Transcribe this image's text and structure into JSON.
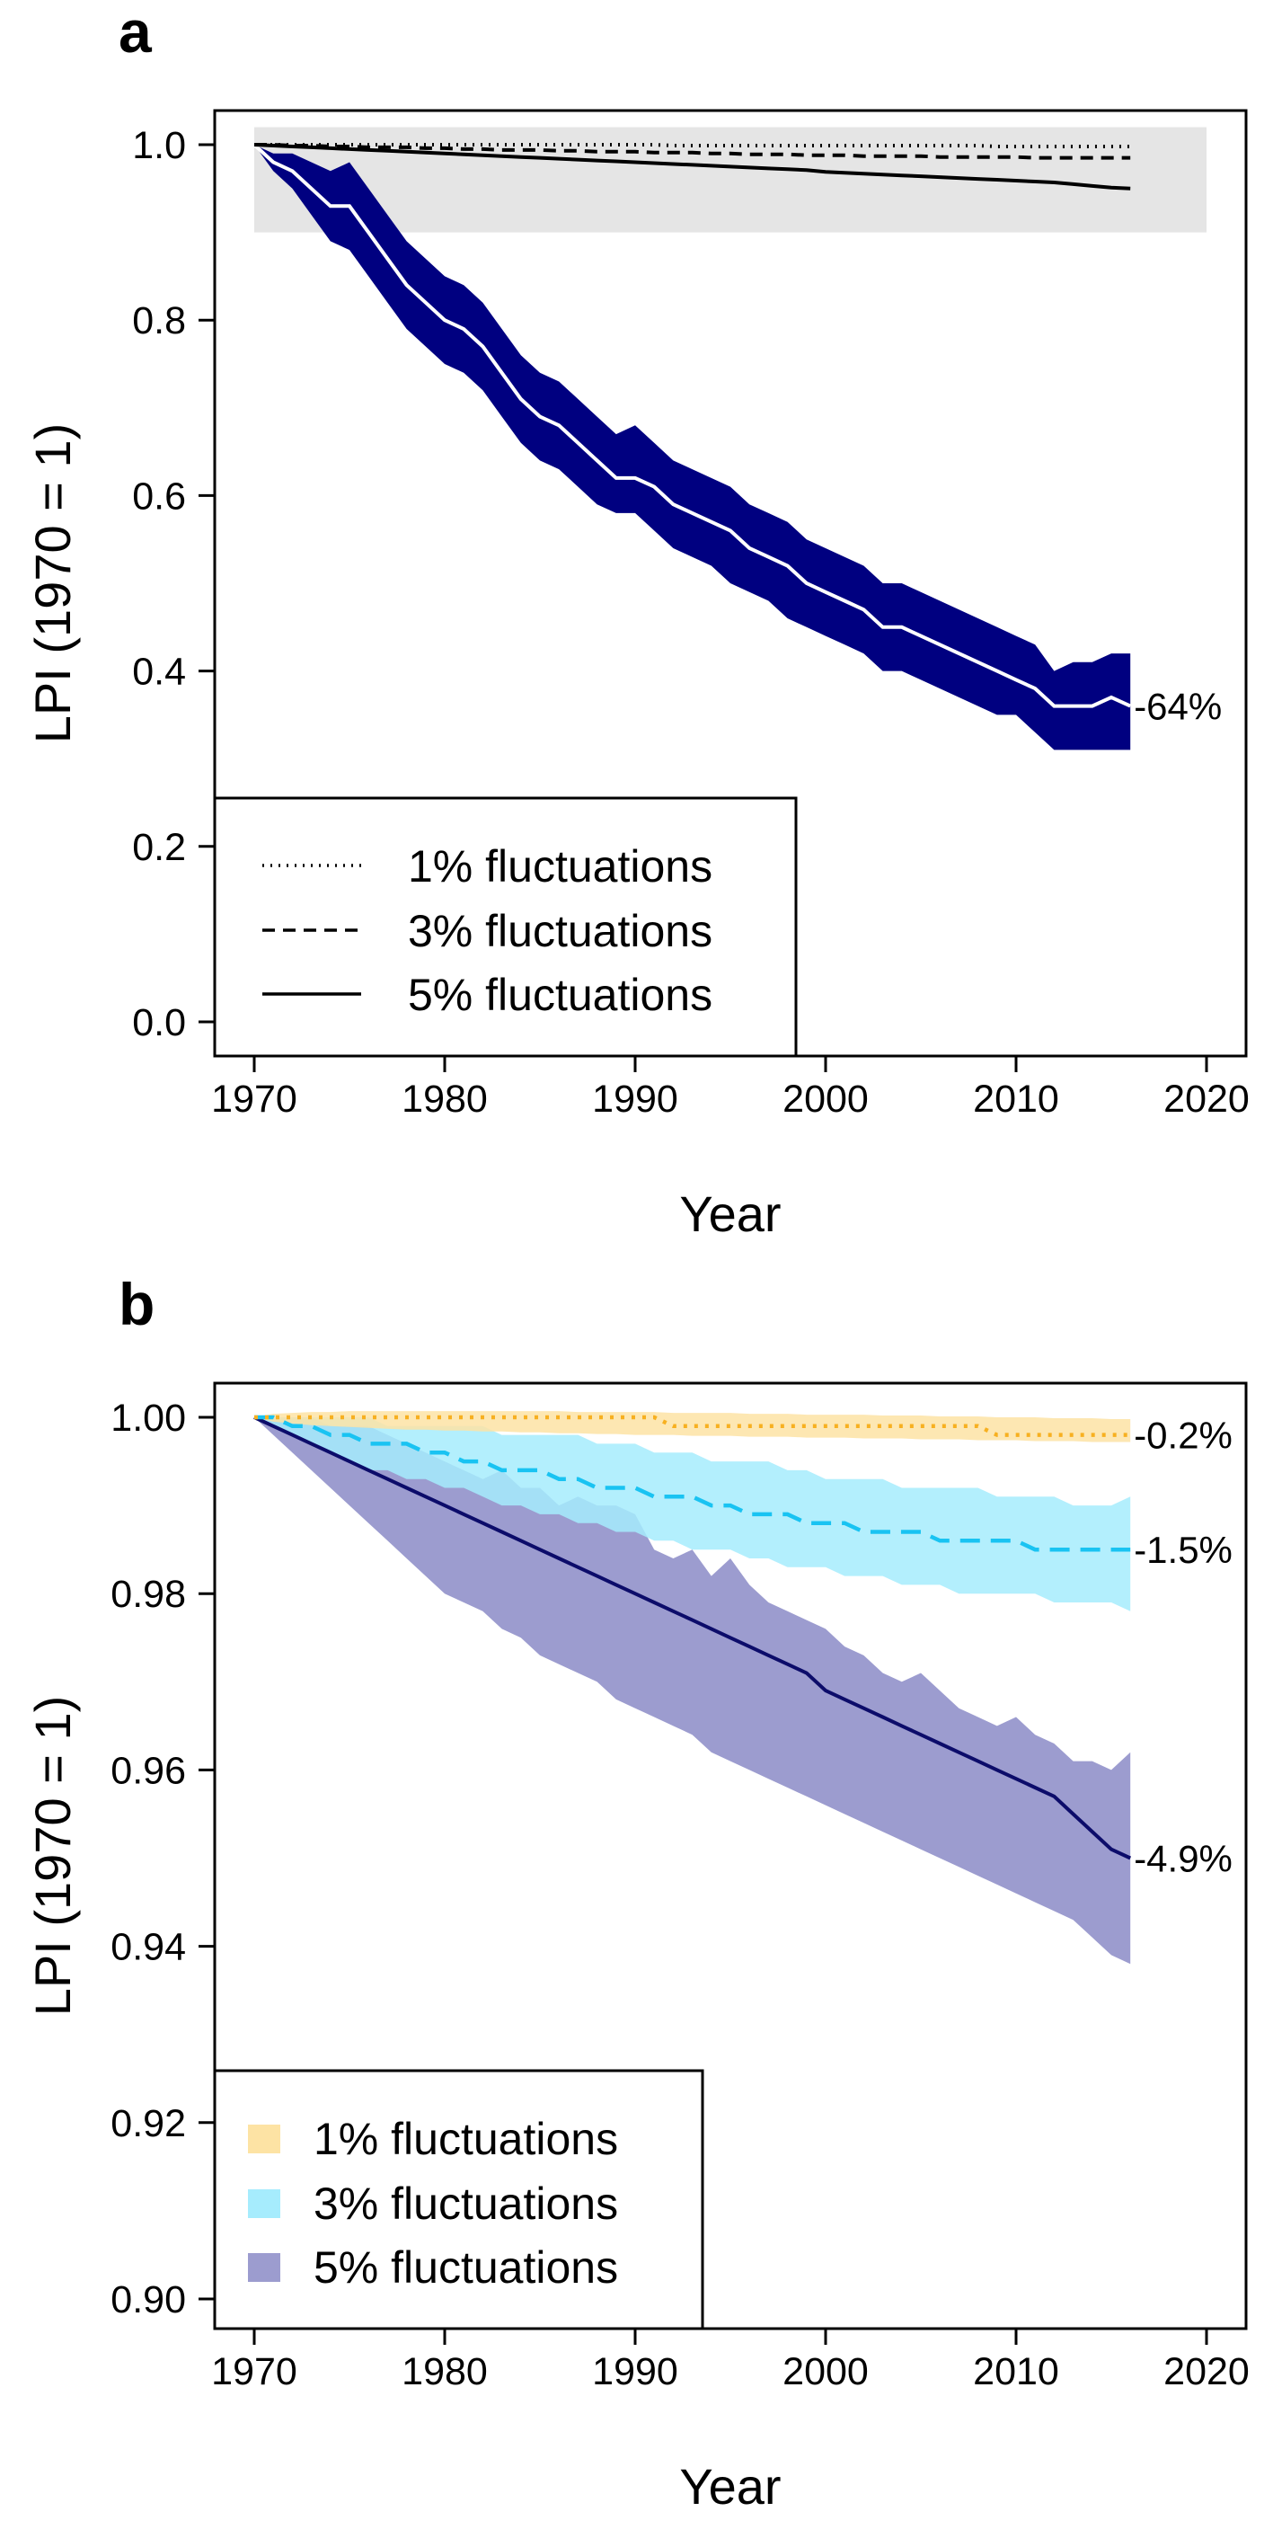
{
  "colors": {
    "dark_blue": "#000080",
    "null_band_grey": "#e5e5e5",
    "white_line": "#ffffff",
    "orange_band": "#fde3a4",
    "orange_line": "#f7b020",
    "cyan_band": "#a6ecfd",
    "cyan_line": "#19c3f2",
    "purple_band": "#9c9ccf",
    "navy_line": "#0c0c6a"
  },
  "chart_data": [
    {
      "type": "line",
      "panel_label": "a",
      "xlabel": "Year",
      "ylabel": "LPI (1970 = 1)",
      "xlim": [
        1970,
        2020
      ],
      "ylim": [
        0.0,
        1.0
      ],
      "xticks": [
        "1970",
        "1980",
        "1990",
        "2000",
        "2010",
        "2020"
      ],
      "yticks": [
        "0.0",
        "0.2",
        "0.4",
        "0.6",
        "0.8",
        "1.0"
      ],
      "grid": false,
      "legend_position": "bottom-left",
      "legend": [
        {
          "label": "1% fluctuations",
          "style": "dotted"
        },
        {
          "label": "3% fluctuations",
          "style": "dashed"
        },
        {
          "label": "5% fluctuations",
          "style": "solid"
        }
      ],
      "null_band": {
        "x": [
          1970,
          2020
        ],
        "y": [
          0.9,
          1.02
        ]
      },
      "x": [
        1970,
        1971,
        1972,
        1973,
        1974,
        1975,
        1976,
        1977,
        1978,
        1979,
        1980,
        1981,
        1982,
        1983,
        1984,
        1985,
        1986,
        1987,
        1988,
        1989,
        1990,
        1991,
        1992,
        1993,
        1994,
        1995,
        1996,
        1997,
        1998,
        1999,
        2000,
        2001,
        2002,
        2003,
        2004,
        2005,
        2006,
        2007,
        2008,
        2009,
        2010,
        2011,
        2012,
        2013,
        2014,
        2015,
        2016
      ],
      "series": [
        {
          "role": "main trend",
          "values": [
            1.0,
            0.98,
            0.97,
            0.95,
            0.93,
            0.93,
            0.9,
            0.87,
            0.84,
            0.82,
            0.8,
            0.79,
            0.77,
            0.74,
            0.71,
            0.69,
            0.68,
            0.66,
            0.64,
            0.62,
            0.62,
            0.61,
            0.59,
            0.58,
            0.57,
            0.56,
            0.54,
            0.53,
            0.52,
            0.5,
            0.49,
            0.48,
            0.47,
            0.45,
            0.45,
            0.44,
            0.43,
            0.42,
            0.41,
            0.4,
            0.39,
            0.38,
            0.36,
            0.36,
            0.36,
            0.37,
            0.36
          ],
          "lower": [
            1.0,
            0.97,
            0.95,
            0.92,
            0.89,
            0.88,
            0.85,
            0.82,
            0.79,
            0.77,
            0.75,
            0.74,
            0.72,
            0.69,
            0.66,
            0.64,
            0.63,
            0.61,
            0.59,
            0.58,
            0.58,
            0.56,
            0.54,
            0.53,
            0.52,
            0.5,
            0.49,
            0.48,
            0.46,
            0.45,
            0.44,
            0.43,
            0.42,
            0.4,
            0.4,
            0.39,
            0.38,
            0.37,
            0.36,
            0.35,
            0.35,
            0.33,
            0.31,
            0.31,
            0.31,
            0.31,
            0.31
          ],
          "upper": [
            1.0,
            0.99,
            0.99,
            0.98,
            0.97,
            0.98,
            0.95,
            0.92,
            0.89,
            0.87,
            0.85,
            0.84,
            0.82,
            0.79,
            0.76,
            0.74,
            0.73,
            0.71,
            0.69,
            0.67,
            0.68,
            0.66,
            0.64,
            0.63,
            0.62,
            0.61,
            0.59,
            0.58,
            0.57,
            0.55,
            0.54,
            0.53,
            0.52,
            0.5,
            0.5,
            0.49,
            0.48,
            0.47,
            0.46,
            0.45,
            0.44,
            0.43,
            0.4,
            0.41,
            0.41,
            0.42,
            0.42
          ],
          "end_label": "-64%"
        },
        {
          "name": "1% fluctuations",
          "style": "dotted",
          "values": [
            1.0,
            1.0,
            1.0,
            1.0,
            1.0,
            1.0,
            1.0,
            1.0,
            1.0,
            1.0,
            1.0,
            1.0,
            1.0,
            1.0,
            1.0,
            1.0,
            1.0,
            1.0,
            1.0,
            1.0,
            1.0,
            1.0,
            0.999,
            0.999,
            0.999,
            0.999,
            0.999,
            0.999,
            0.999,
            0.999,
            0.999,
            0.999,
            0.999,
            0.999,
            0.999,
            0.999,
            0.999,
            0.999,
            0.999,
            0.998,
            0.998,
            0.998,
            0.998,
            0.998,
            0.998,
            0.998,
            0.998
          ]
        },
        {
          "name": "3% fluctuations",
          "style": "dashed",
          "values": [
            1.0,
            1.0,
            0.999,
            0.999,
            0.998,
            0.998,
            0.997,
            0.997,
            0.997,
            0.996,
            0.996,
            0.995,
            0.995,
            0.994,
            0.994,
            0.994,
            0.993,
            0.993,
            0.992,
            0.992,
            0.992,
            0.991,
            0.991,
            0.991,
            0.99,
            0.99,
            0.989,
            0.989,
            0.989,
            0.988,
            0.988,
            0.988,
            0.987,
            0.987,
            0.987,
            0.987,
            0.986,
            0.986,
            0.986,
            0.986,
            0.986,
            0.985,
            0.985,
            0.985,
            0.985,
            0.985,
            0.985
          ]
        },
        {
          "name": "5% fluctuations",
          "style": "solid",
          "values": [
            1.0,
            0.999,
            0.998,
            0.997,
            0.996,
            0.995,
            0.994,
            0.993,
            0.992,
            0.991,
            0.99,
            0.989,
            0.988,
            0.987,
            0.986,
            0.985,
            0.984,
            0.983,
            0.982,
            0.981,
            0.98,
            0.979,
            0.978,
            0.977,
            0.976,
            0.975,
            0.974,
            0.973,
            0.972,
            0.971,
            0.969,
            0.968,
            0.967,
            0.966,
            0.965,
            0.964,
            0.963,
            0.962,
            0.961,
            0.96,
            0.959,
            0.958,
            0.957,
            0.955,
            0.953,
            0.951,
            0.95
          ]
        }
      ]
    },
    {
      "type": "line",
      "panel_label": "b",
      "xlabel": "Year",
      "ylabel": "LPI (1970 = 1)",
      "xlim": [
        1970,
        2020
      ],
      "ylim": [
        0.9,
        1.0
      ],
      "xticks": [
        "1970",
        "1980",
        "1990",
        "2000",
        "2010",
        "2020"
      ],
      "yticks": [
        "0.90",
        "0.92",
        "0.94",
        "0.96",
        "0.98",
        "1.00"
      ],
      "grid": false,
      "legend_position": "bottom-left",
      "legend": [
        {
          "label": "1% fluctuations",
          "swatch": "orange_band"
        },
        {
          "label": "3% fluctuations",
          "swatch": "cyan_band"
        },
        {
          "label": "5% fluctuations",
          "swatch": "purple_band"
        }
      ],
      "x": [
        1970,
        1971,
        1972,
        1973,
        1974,
        1975,
        1976,
        1977,
        1978,
        1979,
        1980,
        1981,
        1982,
        1983,
        1984,
        1985,
        1986,
        1987,
        1988,
        1989,
        1990,
        1991,
        1992,
        1993,
        1994,
        1995,
        1996,
        1997,
        1998,
        1999,
        2000,
        2001,
        2002,
        2003,
        2004,
        2005,
        2006,
        2007,
        2008,
        2009,
        2010,
        2011,
        2012,
        2013,
        2014,
        2015,
        2016
      ],
      "series": [
        {
          "name": "5% fluctuations",
          "values": [
            1.0,
            0.999,
            0.998,
            0.997,
            0.996,
            0.995,
            0.994,
            0.993,
            0.992,
            0.991,
            0.99,
            0.989,
            0.988,
            0.987,
            0.986,
            0.985,
            0.984,
            0.983,
            0.982,
            0.981,
            0.98,
            0.979,
            0.978,
            0.977,
            0.976,
            0.975,
            0.974,
            0.973,
            0.972,
            0.971,
            0.969,
            0.968,
            0.967,
            0.966,
            0.965,
            0.964,
            0.963,
            0.962,
            0.961,
            0.96,
            0.959,
            0.958,
            0.957,
            0.955,
            0.953,
            0.951,
            0.95
          ],
          "lower": [
            1.0,
            0.998,
            0.996,
            0.994,
            0.992,
            0.99,
            0.988,
            0.986,
            0.984,
            0.982,
            0.98,
            0.979,
            0.978,
            0.976,
            0.975,
            0.973,
            0.972,
            0.971,
            0.97,
            0.968,
            0.967,
            0.966,
            0.965,
            0.964,
            0.962,
            0.961,
            0.96,
            0.959,
            0.958,
            0.957,
            0.956,
            0.955,
            0.954,
            0.953,
            0.952,
            0.951,
            0.95,
            0.949,
            0.948,
            0.947,
            0.946,
            0.945,
            0.944,
            0.943,
            0.941,
            0.939,
            0.938
          ],
          "upper": [
            1.0,
            1.0,
            1.0,
            1.0,
            0.999,
            0.999,
            0.999,
            0.998,
            0.997,
            0.996,
            0.995,
            0.994,
            0.993,
            0.994,
            0.992,
            0.992,
            0.99,
            0.991,
            0.99,
            0.99,
            0.989,
            0.985,
            0.984,
            0.985,
            0.982,
            0.984,
            0.981,
            0.979,
            0.978,
            0.977,
            0.976,
            0.974,
            0.973,
            0.971,
            0.97,
            0.971,
            0.969,
            0.967,
            0.966,
            0.965,
            0.966,
            0.964,
            0.963,
            0.961,
            0.961,
            0.96,
            0.962
          ],
          "end_label": "-4.9%"
        },
        {
          "name": "3% fluctuations",
          "values": [
            1.0,
            1.0,
            0.999,
            0.999,
            0.998,
            0.998,
            0.997,
            0.997,
            0.997,
            0.996,
            0.996,
            0.995,
            0.995,
            0.994,
            0.994,
            0.994,
            0.993,
            0.993,
            0.992,
            0.992,
            0.992,
            0.991,
            0.991,
            0.991,
            0.99,
            0.99,
            0.989,
            0.989,
            0.989,
            0.988,
            0.988,
            0.988,
            0.987,
            0.987,
            0.987,
            0.987,
            0.986,
            0.986,
            0.986,
            0.986,
            0.986,
            0.985,
            0.985,
            0.985,
            0.985,
            0.985,
            0.985
          ],
          "lower": [
            1.0,
            0.999,
            0.998,
            0.997,
            0.996,
            0.995,
            0.994,
            0.994,
            0.993,
            0.993,
            0.992,
            0.992,
            0.991,
            0.99,
            0.99,
            0.989,
            0.989,
            0.988,
            0.988,
            0.987,
            0.987,
            0.986,
            0.986,
            0.985,
            0.985,
            0.985,
            0.984,
            0.984,
            0.983,
            0.983,
            0.983,
            0.982,
            0.982,
            0.982,
            0.981,
            0.981,
            0.981,
            0.98,
            0.98,
            0.98,
            0.98,
            0.98,
            0.979,
            0.979,
            0.979,
            0.979,
            0.978
          ],
          "upper": [
            1.0,
            1.0,
            1.0,
            1.0,
            1.0,
            1.0,
            1.0,
            0.999,
            0.999,
            0.999,
            0.999,
            0.999,
            0.999,
            0.998,
            0.998,
            0.998,
            0.998,
            0.998,
            0.997,
            0.997,
            0.997,
            0.996,
            0.996,
            0.996,
            0.995,
            0.995,
            0.995,
            0.995,
            0.994,
            0.994,
            0.993,
            0.993,
            0.993,
            0.993,
            0.992,
            0.992,
            0.992,
            0.992,
            0.992,
            0.991,
            0.991,
            0.991,
            0.991,
            0.99,
            0.99,
            0.99,
            0.991
          ],
          "end_label": "-1.5%"
        },
        {
          "name": "1% fluctuations",
          "values": [
            1.0,
            1.0,
            1.0,
            1.0,
            1.0,
            1.0,
            1.0,
            1.0,
            1.0,
            1.0,
            1.0,
            1.0,
            1.0,
            1.0,
            1.0,
            1.0,
            1.0,
            1.0,
            1.0,
            1.0,
            1.0,
            1.0,
            0.999,
            0.999,
            0.999,
            0.999,
            0.999,
            0.999,
            0.999,
            0.999,
            0.999,
            0.999,
            0.999,
            0.999,
            0.999,
            0.999,
            0.999,
            0.999,
            0.999,
            0.998,
            0.998,
            0.998,
            0.998,
            0.998,
            0.998,
            0.998,
            0.998
          ],
          "lower": [
            1.0,
            0.9995,
            0.9993,
            0.9991,
            0.999,
            0.9989,
            0.9988,
            0.9987,
            0.9986,
            0.9986,
            0.9985,
            0.9985,
            0.9984,
            0.9984,
            0.9983,
            0.9983,
            0.9982,
            0.9982,
            0.9981,
            0.9981,
            0.998,
            0.998,
            0.998,
            0.9979,
            0.9979,
            0.9979,
            0.9978,
            0.9978,
            0.9978,
            0.9977,
            0.9977,
            0.9977,
            0.9976,
            0.9976,
            0.9976,
            0.9975,
            0.9975,
            0.9975,
            0.9974,
            0.9974,
            0.9974,
            0.9973,
            0.9973,
            0.9973,
            0.9972,
            0.9972,
            0.9972
          ],
          "upper": [
            1.0,
            1.0004,
            1.0005,
            1.0006,
            1.0006,
            1.0007,
            1.0007,
            1.0007,
            1.0007,
            1.0007,
            1.0007,
            1.0007,
            1.0007,
            1.0007,
            1.0007,
            1.0007,
            1.0007,
            1.0006,
            1.0006,
            1.0006,
            1.0006,
            1.0006,
            1.0005,
            1.0005,
            1.0005,
            1.0005,
            1.0004,
            1.0004,
            1.0004,
            1.0003,
            1.0003,
            1.0003,
            1.0003,
            1.0002,
            1.0002,
            1.0002,
            1.0001,
            1.0001,
            1.0001,
            1.0,
            1.0,
            1.0,
            0.9999,
            0.9999,
            0.9999,
            0.9998,
            0.9998
          ],
          "end_label": "-0.2%"
        }
      ]
    }
  ]
}
